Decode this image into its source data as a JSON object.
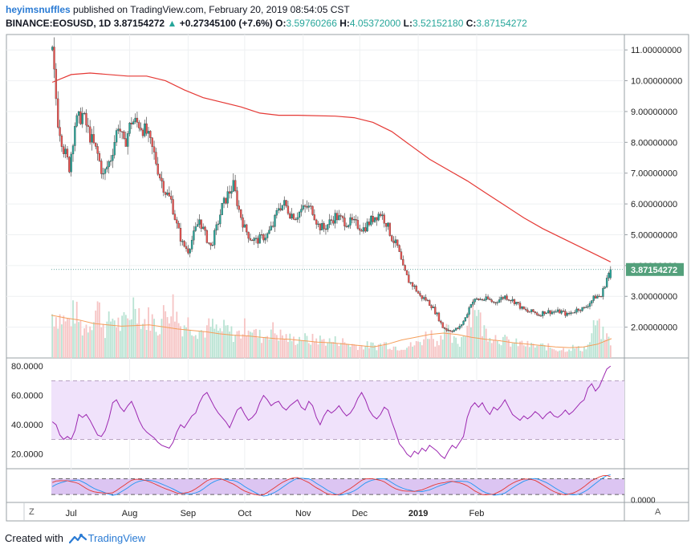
{
  "header": {
    "user": "heyimsnuffles",
    "published_text": " published on TradingView.com, February 20, 2019 08:54:05 CST",
    "symbol": "BINANCE:EOSUSD, 1D",
    "last": "3.87154272",
    "change": "+0.27345100 (+7.6%)",
    "o_label": "O:",
    "o": "3.59760266",
    "h_label": "H:",
    "h": "4.05372000",
    "l_label": "L:",
    "l": "3.52152180",
    "c_label": "C:",
    "c": "3.87154272"
  },
  "footer": {
    "created_with": "Created with",
    "brand": "TradingView"
  },
  "colors": {
    "up": "#26a69a",
    "down": "#ef5350",
    "sma": "#e53935",
    "vol_ma": "#f59e5a",
    "rsi": "#9c27b0",
    "rsi_band": "#f0e2fb",
    "stoch_k": "#2196f3",
    "stoch_d": "#e53935",
    "price_tag": "#53a07b"
  },
  "chart_data": [
    {
      "type": "candlestick",
      "symbol": "BINANCE:EOSUSD",
      "interval": "1D",
      "x_tick_labels": [
        "Jul",
        "Aug",
        "Sep",
        "Oct",
        "Nov",
        "Dec",
        "2019",
        "Feb"
      ],
      "y_tick_labels": [
        "11.00000000",
        "10.00000000",
        "9.00000000",
        "8.00000000",
        "7.00000000",
        "6.00000000",
        "5.00000000",
        "4.00000000",
        "3.00000000",
        "2.00000000"
      ],
      "ylim": [
        1.0,
        11.5
      ],
      "last_price_label": "3.87154272",
      "close_path": [
        [
          0,
          10.9
        ],
        [
          3,
          8.7
        ],
        [
          6,
          7.8
        ],
        [
          9,
          7.2
        ],
        [
          12,
          8.6
        ],
        [
          16,
          8.9
        ],
        [
          20,
          8.2
        ],
        [
          24,
          7.6
        ],
        [
          27,
          6.9
        ],
        [
          31,
          7.5
        ],
        [
          35,
          8.6
        ],
        [
          38,
          7.9
        ],
        [
          42,
          8.7
        ],
        [
          46,
          8.6
        ],
        [
          50,
          8.3
        ],
        [
          54,
          7.6
        ],
        [
          57,
          6.9
        ],
        [
          60,
          6.4
        ],
        [
          63,
          6.1
        ],
        [
          66,
          5.3
        ],
        [
          69,
          4.7
        ],
        [
          72,
          4.5
        ],
        [
          75,
          5.0
        ],
        [
          78,
          5.5
        ],
        [
          81,
          5.0
        ],
        [
          84,
          4.6
        ],
        [
          87,
          5.2
        ],
        [
          90,
          5.9
        ],
        [
          93,
          6.3
        ],
        [
          96,
          6.6
        ],
        [
          99,
          5.8
        ],
        [
          102,
          5.2
        ],
        [
          105,
          4.9
        ],
        [
          108,
          4.8
        ],
        [
          111,
          4.9
        ],
        [
          114,
          5.0
        ],
        [
          117,
          5.3
        ],
        [
          120,
          5.9
        ],
        [
          123,
          6.0
        ],
        [
          126,
          5.7
        ],
        [
          129,
          5.6
        ],
        [
          132,
          5.8
        ],
        [
          135,
          5.9
        ],
        [
          138,
          5.8
        ],
        [
          141,
          5.3
        ],
        [
          144,
          5.2
        ],
        [
          147,
          5.4
        ],
        [
          150,
          5.6
        ],
        [
          153,
          5.5
        ],
        [
          156,
          5.4
        ],
        [
          159,
          5.4
        ],
        [
          162,
          5.3
        ],
        [
          165,
          5.2
        ],
        [
          168,
          5.4
        ],
        [
          171,
          5.6
        ],
        [
          174,
          5.7
        ],
        [
          177,
          5.4
        ],
        [
          180,
          4.9
        ],
        [
          183,
          4.6
        ],
        [
          186,
          3.9
        ],
        [
          189,
          3.5
        ],
        [
          192,
          3.3
        ],
        [
          195,
          3.0
        ],
        [
          198,
          2.9
        ],
        [
          201,
          2.7
        ],
        [
          204,
          2.4
        ],
        [
          207,
          2.0
        ],
        [
          210,
          1.9
        ],
        [
          213,
          1.9
        ],
        [
          216,
          2.0
        ],
        [
          219,
          2.3
        ],
        [
          222,
          2.8
        ],
        [
          225,
          2.9
        ],
        [
          228,
          2.9
        ],
        [
          231,
          2.9
        ],
        [
          234,
          2.8
        ],
        [
          237,
          2.9
        ],
        [
          240,
          3.0
        ],
        [
          243,
          2.9
        ],
        [
          246,
          2.8
        ],
        [
          249,
          2.6
        ],
        [
          252,
          2.5
        ],
        [
          255,
          2.5
        ],
        [
          258,
          2.4
        ],
        [
          261,
          2.5
        ],
        [
          264,
          2.5
        ],
        [
          267,
          2.5
        ],
        [
          270,
          2.5
        ],
        [
          273,
          2.4
        ],
        [
          276,
          2.5
        ],
        [
          279,
          2.6
        ],
        [
          282,
          2.6
        ],
        [
          285,
          2.8
        ],
        [
          288,
          3.0
        ],
        [
          291,
          3.0
        ],
        [
          294,
          3.6
        ],
        [
          296,
          3.87
        ]
      ],
      "sma_path": [
        [
          0,
          9.95
        ],
        [
          10,
          10.2
        ],
        [
          20,
          10.25
        ],
        [
          40,
          10.15
        ],
        [
          50,
          10.15
        ],
        [
          60,
          10.0
        ],
        [
          70,
          9.7
        ],
        [
          80,
          9.45
        ],
        [
          90,
          9.3
        ],
        [
          100,
          9.15
        ],
        [
          110,
          8.95
        ],
        [
          120,
          8.88
        ],
        [
          130,
          8.88
        ],
        [
          150,
          8.85
        ],
        [
          160,
          8.8
        ],
        [
          170,
          8.65
        ],
        [
          180,
          8.35
        ],
        [
          190,
          7.9
        ],
        [
          200,
          7.45
        ],
        [
          210,
          7.1
        ],
        [
          220,
          6.75
        ],
        [
          230,
          6.35
        ],
        [
          240,
          5.95
        ],
        [
          250,
          5.55
        ],
        [
          260,
          5.2
        ],
        [
          270,
          4.9
        ],
        [
          280,
          4.6
        ],
        [
          290,
          4.3
        ],
        [
          296,
          4.12
        ]
      ]
    },
    {
      "type": "bar",
      "name": "volume",
      "values_normalized": [
        0.75,
        0.7,
        0.6,
        0.8,
        0.5,
        0.6,
        0.9,
        0.5,
        0.7,
        0.55,
        0.65,
        1.0,
        0.6,
        0.7,
        0.5,
        0.8,
        0.9,
        0.55,
        0.6,
        0.5,
        0.45,
        0.55,
        0.45,
        0.5,
        0.4,
        0.42,
        0.6,
        0.4,
        0.35,
        0.5,
        0.4,
        0.35,
        0.3,
        0.35,
        0.3,
        0.32,
        0.3,
        0.28,
        0.3,
        0.25,
        0.22,
        0.2,
        0.22,
        0.2,
        0.25,
        0.2,
        0.18,
        0.2,
        0.22,
        0.3,
        0.45,
        0.25,
        0.55,
        0.3,
        0.25,
        0.6,
        1.0,
        0.5,
        0.4,
        0.35,
        0.3,
        0.25,
        0.25,
        0.22,
        0.2,
        0.2,
        0.18,
        0.15,
        0.15,
        0.18,
        0.15,
        0.2,
        0.6,
        0.4,
        0.3
      ],
      "ma_normalized": [
        0.62,
        0.58,
        0.55,
        0.5,
        0.48,
        0.46,
        0.47,
        0.48,
        0.45,
        0.42,
        0.4,
        0.38,
        0.35,
        0.33,
        0.32,
        0.3,
        0.28,
        0.27,
        0.25,
        0.23,
        0.22,
        0.2,
        0.18,
        0.16,
        0.2,
        0.26,
        0.3,
        0.34,
        0.36,
        0.34,
        0.3,
        0.27,
        0.25,
        0.22,
        0.2,
        0.18,
        0.16,
        0.15,
        0.16,
        0.2,
        0.28
      ]
    },
    {
      "type": "line",
      "name": "RSI",
      "y_tick_labels": [
        "80.0000",
        "60.0000",
        "40.0000",
        "20.0000"
      ],
      "ylim": [
        10,
        85
      ],
      "bands": [
        30,
        70
      ],
      "points": [
        [
          0,
          42
        ],
        [
          2,
          40
        ],
        [
          4,
          33
        ],
        [
          6,
          30
        ],
        [
          8,
          32
        ],
        [
          10,
          30
        ],
        [
          12,
          36
        ],
        [
          14,
          47
        ],
        [
          16,
          45
        ],
        [
          18,
          47
        ],
        [
          20,
          43
        ],
        [
          22,
          38
        ],
        [
          24,
          33
        ],
        [
          26,
          32
        ],
        [
          28,
          36
        ],
        [
          30,
          44
        ],
        [
          32,
          55
        ],
        [
          34,
          57
        ],
        [
          36,
          52
        ],
        [
          38,
          49
        ],
        [
          40,
          53
        ],
        [
          42,
          56
        ],
        [
          44,
          50
        ],
        [
          46,
          43
        ],
        [
          48,
          38
        ],
        [
          50,
          35
        ],
        [
          52,
          33
        ],
        [
          54,
          31
        ],
        [
          56,
          28
        ],
        [
          58,
          26
        ],
        [
          60,
          25
        ],
        [
          62,
          24
        ],
        [
          64,
          28
        ],
        [
          66,
          35
        ],
        [
          68,
          40
        ],
        [
          70,
          38
        ],
        [
          72,
          42
        ],
        [
          74,
          46
        ],
        [
          76,
          48
        ],
        [
          78,
          55
        ],
        [
          80,
          60
        ],
        [
          82,
          62
        ],
        [
          84,
          57
        ],
        [
          86,
          52
        ],
        [
          88,
          48
        ],
        [
          90,
          45
        ],
        [
          92,
          42
        ],
        [
          94,
          38
        ],
        [
          96,
          44
        ],
        [
          98,
          50
        ],
        [
          100,
          52
        ],
        [
          102,
          47
        ],
        [
          104,
          43
        ],
        [
          106,
          45
        ],
        [
          108,
          48
        ],
        [
          110,
          55
        ],
        [
          112,
          60
        ],
        [
          114,
          57
        ],
        [
          116,
          53
        ],
        [
          118,
          55
        ],
        [
          120,
          56
        ],
        [
          122,
          52
        ],
        [
          124,
          50
        ],
        [
          126,
          53
        ],
        [
          128,
          55
        ],
        [
          130,
          57
        ],
        [
          132,
          52
        ],
        [
          134,
          50
        ],
        [
          136,
          56
        ],
        [
          138,
          53
        ],
        [
          140,
          45
        ],
        [
          142,
          40
        ],
        [
          144,
          46
        ],
        [
          146,
          50
        ],
        [
          148,
          48
        ],
        [
          150,
          50
        ],
        [
          152,
          53
        ],
        [
          154,
          49
        ],
        [
          156,
          46
        ],
        [
          158,
          48
        ],
        [
          160,
          52
        ],
        [
          162,
          58
        ],
        [
          164,
          62
        ],
        [
          166,
          57
        ],
        [
          168,
          50
        ],
        [
          170,
          46
        ],
        [
          172,
          44
        ],
        [
          174,
          47
        ],
        [
          176,
          52
        ],
        [
          178,
          50
        ],
        [
          180,
          42
        ],
        [
          182,
          35
        ],
        [
          184,
          27
        ],
        [
          186,
          24
        ],
        [
          188,
          20
        ],
        [
          190,
          18
        ],
        [
          192,
          22
        ],
        [
          194,
          20
        ],
        [
          196,
          24
        ],
        [
          198,
          22
        ],
        [
          200,
          26
        ],
        [
          202,
          24
        ],
        [
          204,
          22
        ],
        [
          206,
          19
        ],
        [
          208,
          17
        ],
        [
          210,
          22
        ],
        [
          212,
          26
        ],
        [
          214,
          24
        ],
        [
          216,
          28
        ],
        [
          218,
          32
        ],
        [
          220,
          45
        ],
        [
          222,
          52
        ],
        [
          224,
          55
        ],
        [
          226,
          52
        ],
        [
          228,
          55
        ],
        [
          230,
          50
        ],
        [
          232,
          47
        ],
        [
          234,
          52
        ],
        [
          236,
          50
        ],
        [
          238,
          53
        ],
        [
          240,
          57
        ],
        [
          242,
          52
        ],
        [
          244,
          47
        ],
        [
          246,
          45
        ],
        [
          248,
          43
        ],
        [
          250,
          46
        ],
        [
          252,
          44
        ],
        [
          254,
          46
        ],
        [
          256,
          49
        ],
        [
          258,
          47
        ],
        [
          260,
          44
        ],
        [
          262,
          47
        ],
        [
          264,
          49
        ],
        [
          266,
          46
        ],
        [
          268,
          45
        ],
        [
          270,
          47
        ],
        [
          272,
          50
        ],
        [
          274,
          47
        ],
        [
          276,
          49
        ],
        [
          278,
          52
        ],
        [
          280,
          55
        ],
        [
          282,
          57
        ],
        [
          284,
          65
        ],
        [
          286,
          68
        ],
        [
          288,
          63
        ],
        [
          290,
          66
        ],
        [
          292,
          72
        ],
        [
          294,
          78
        ],
        [
          296,
          80
        ]
      ]
    },
    {
      "type": "line",
      "name": "Stoch RSI",
      "y_tick_labels": [
        "0.0000"
      ],
      "ylim": [
        -10,
        115
      ],
      "bands": [
        20,
        80
      ],
      "k_phase": 0.0,
      "d_phase": 0.6
    }
  ]
}
